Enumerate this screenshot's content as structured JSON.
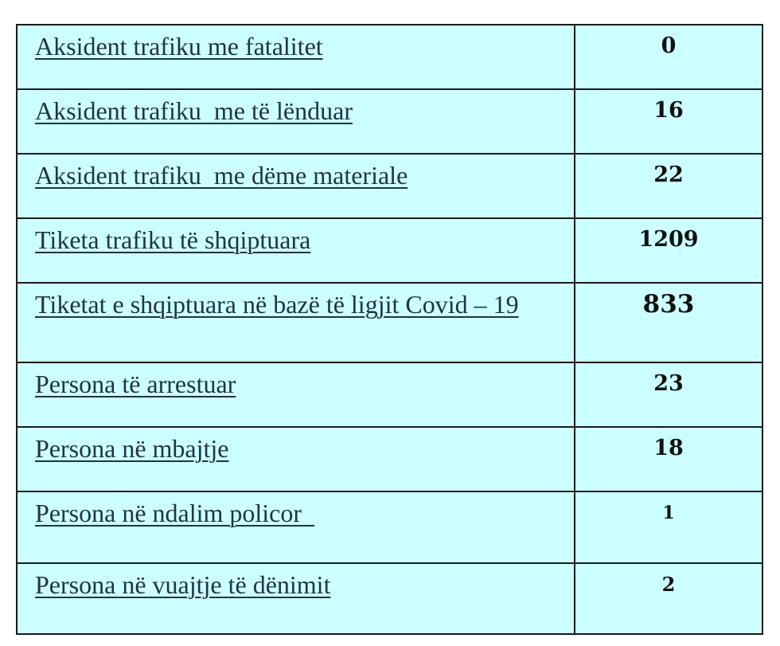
{
  "rows": [
    {
      "label": "Aksident trafiku me fatalitet",
      "value": "0"
    },
    {
      "label": "Aksident trafiku  me të lënduar",
      "value": "16"
    },
    {
      "label": "Aksident trafiku  me dëme materiale",
      "value": "22"
    },
    {
      "label": "Tiketa trafiku të shqiptuara",
      "value": "1209"
    },
    {
      "label": "Tiketat e shqiptuara në bazë të ligjit Covid – 19",
      "value": "833"
    },
    {
      "label": "Persona të arrestuar",
      "value": "23"
    },
    {
      "label": "Persona në mbajtje",
      "value": "18"
    },
    {
      "label": "Persona në ndalim policor  ",
      "value": "1"
    },
    {
      "label": "Persona në vuajtje të dënimit",
      "value": "2"
    }
  ],
  "colors": {
    "cell_background": "#ccffff",
    "border": "#1a1a1a"
  }
}
